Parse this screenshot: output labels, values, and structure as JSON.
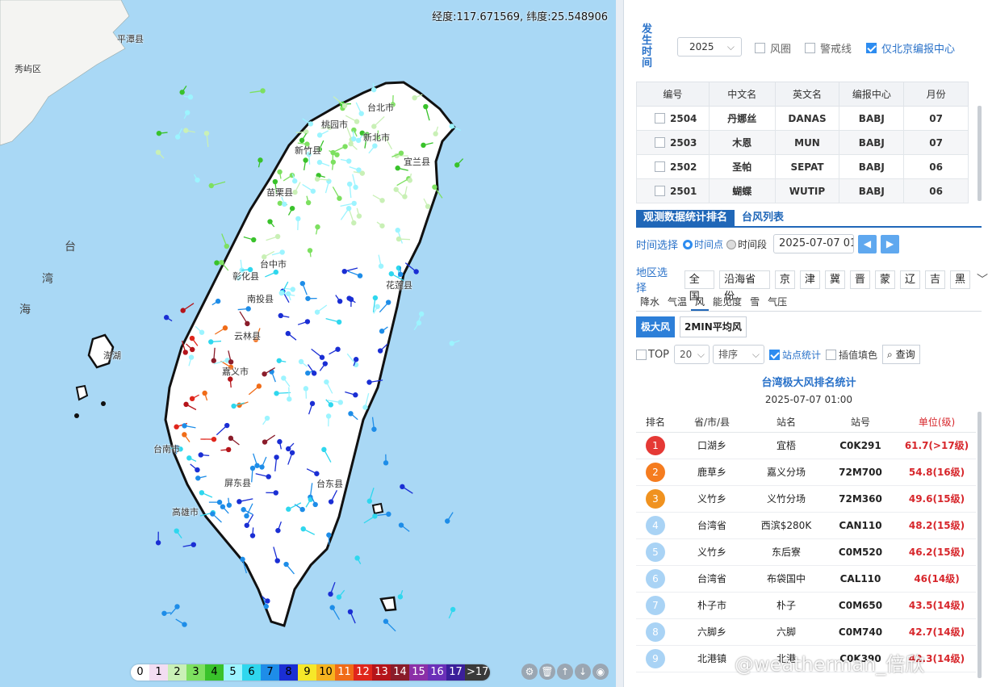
{
  "map": {
    "coordinate_text": "经度:117.671569, 纬度:25.548906",
    "place_labels": [
      "台北市",
      "新北市",
      "桃园市",
      "新竹县",
      "苗栗县",
      "宜兰县",
      "台中市",
      "彰化县",
      "南投县",
      "花莲县",
      "云林县",
      "嘉义市",
      "台南市",
      "高雄市",
      "屏东县",
      "台东县",
      "澎湖",
      "秀屿区",
      "平潭县"
    ],
    "sea_labels": [
      "台",
      "湾",
      "海"
    ],
    "legend_levels": [
      "0",
      "1",
      "2",
      "3",
      "4",
      "5",
      "6",
      "7",
      "8",
      "9",
      "10",
      "11",
      "12",
      "13",
      "14",
      "15",
      "16",
      "17",
      ">17"
    ],
    "legend_colors": [
      "#ffffff",
      "#f3ddf2",
      "#c9f0b6",
      "#7de060",
      "#39c22b",
      "#9cf4ff",
      "#2fd7ee",
      "#1e8de8",
      "#1a2ed4",
      "#f6e829",
      "#f6b420",
      "#f06c18",
      "#e0261c",
      "#b5141a",
      "#8a1c2a",
      "#8b2fa7",
      "#6a2fb8",
      "#3b1f9a",
      "#3a3a3a"
    ],
    "tools": [
      "settings-icon",
      "trash-icon",
      "arrow-up-icon",
      "arrow-down-icon",
      "eye-icon"
    ]
  },
  "panel": {
    "time_label": "发生时间",
    "year": "2025",
    "options": [
      {
        "label": "风圈",
        "checked": false
      },
      {
        "label": "警戒线",
        "checked": false
      },
      {
        "label": "仅北京编报中心",
        "checked": true
      }
    ],
    "typhoon_columns": [
      "编号",
      "中文名",
      "英文名",
      "编报中心",
      "月份"
    ],
    "typhoons": [
      {
        "id": "2504",
        "cn": "丹娜丝",
        "en": "DANAS",
        "center": "BABJ",
        "month": "07"
      },
      {
        "id": "2503",
        "cn": "木恩",
        "en": "MUN",
        "center": "BABJ",
        "month": "07"
      },
      {
        "id": "2502",
        "cn": "圣帕",
        "en": "SEPAT",
        "center": "BABJ",
        "month": "06"
      },
      {
        "id": "2501",
        "cn": "蝴蝶",
        "en": "WUTIP",
        "center": "BABJ",
        "month": "06"
      }
    ],
    "tabs": [
      "观测数据统计排名",
      "台风列表"
    ],
    "time_select": {
      "label": "时间选择",
      "point": "时间点",
      "range": "时间段",
      "date": "2025-07-07 01"
    },
    "region": {
      "label": "地区选择",
      "items": [
        "全国",
        "沿海省份",
        "京",
        "津",
        "冀",
        "晋",
        "蒙",
        "辽",
        "吉",
        "黑"
      ]
    },
    "elements": [
      "降水",
      "气温",
      "风",
      "能见度",
      "雪",
      "气压"
    ],
    "wind_types": [
      "极大风",
      "2MIN平均风"
    ],
    "filter": {
      "top": "TOP",
      "count": "20",
      "sort": "排序",
      "station_stat": "站点统计",
      "interp_fill": "插值填色",
      "query": "查询"
    },
    "stat_title": "台湾极大风排名统计",
    "stat_time": "2025-07-07 01:00",
    "rank_columns": [
      "排名",
      "省/市/县",
      "站名",
      "站号",
      "单位(级)"
    ],
    "rank_rows": [
      {
        "rank": "1",
        "area": "口湖乡",
        "name": "宜梧",
        "sid": "C0K291",
        "val": "61.7(>17级)",
        "color": "#e53935"
      },
      {
        "rank": "2",
        "area": "鹿草乡",
        "name": "嘉义分场",
        "sid": "72M700",
        "val": "54.8(16级)",
        "color": "#f57c1f"
      },
      {
        "rank": "3",
        "area": "义竹乡",
        "name": "义竹分场",
        "sid": "72M360",
        "val": "49.6(15级)",
        "color": "#f0921f"
      },
      {
        "rank": "4",
        "area": "台湾省",
        "name": "西滨$280K",
        "sid": "CAN110",
        "val": "48.2(15级)",
        "color": "#a9d3f5"
      },
      {
        "rank": "5",
        "area": "义竹乡",
        "name": "东后寮",
        "sid": "C0M520",
        "val": "46.2(15级)",
        "color": "#a9d3f5"
      },
      {
        "rank": "6",
        "area": "台湾省",
        "name": "布袋国中",
        "sid": "CAL110",
        "val": "46(14级)",
        "color": "#a9d3f5"
      },
      {
        "rank": "7",
        "area": "朴子市",
        "name": "朴子",
        "sid": "C0M650",
        "val": "43.5(14级)",
        "color": "#a9d3f5"
      },
      {
        "rank": "8",
        "area": "六脚乡",
        "name": "六脚",
        "sid": "C0M740",
        "val": "42.7(14级)",
        "color": "#a9d3f5"
      },
      {
        "rank": "9",
        "area": "北港镇",
        "name": "北港",
        "sid": "C0K390",
        "val": "42.3(14级)",
        "color": "#a9d3f5"
      }
    ]
  },
  "watermark": "@weatherman_倍欣"
}
